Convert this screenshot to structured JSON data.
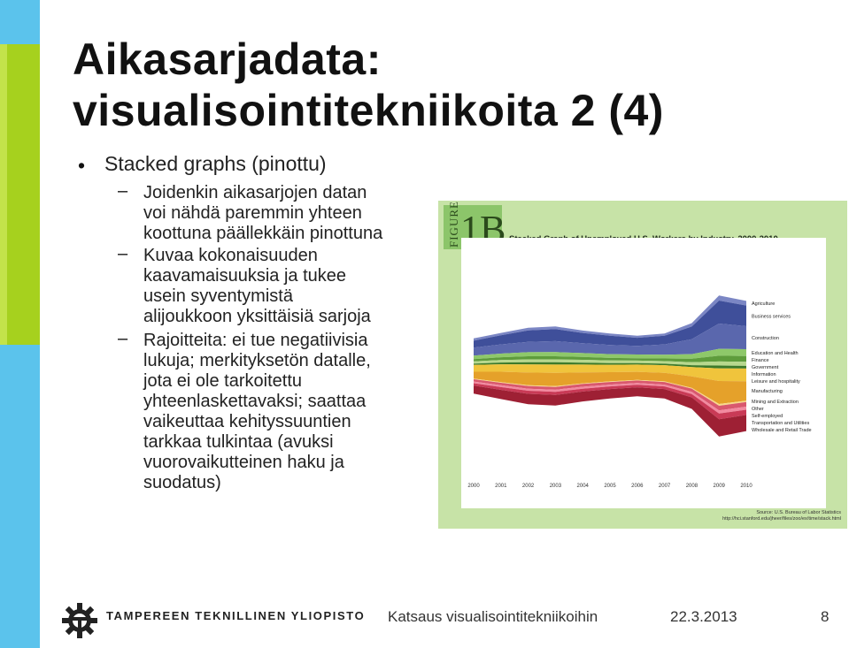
{
  "slide": {
    "title_line1": "Aikasarjadata:",
    "title_line2": "visualisointitekniikoita 2 (4)",
    "bullet": "Stacked graphs (pinottu)",
    "subbullets": [
      {
        "lines": [
          "Joidenkin aikasarjojen datan",
          "voi nähdä paremmin yhteen",
          "koottuna päällekkäin pinottuna"
        ]
      },
      {
        "lines": [
          "Kuvaa kokonaisuuden",
          "kaavamaisuuksia ja tukee",
          "usein syventymistä",
          "alijoukkoon yksittäisiä sarjoja"
        ]
      },
      {
        "lines": [
          "Rajoitteita: ei tue negatiivisia",
          "lukuja; merkityksetön datalle,",
          "jota ei ole tarkoitettu",
          "yhteenlaskettavaksi; saattaa",
          "vaikeuttaa kehityssuuntien",
          "tarkkaa tulkintaa (avuksi",
          "vuorovaikutteinen haku ja",
          "suodatus)"
        ]
      }
    ]
  },
  "figure": {
    "word": "FIGURE",
    "num": "1B",
    "title": "Stacked Graph of Unemployed U.S. Workers by Industry, 2000-2010",
    "source_line1": "Source: U.S. Bureau of Labor Statistics",
    "source_line2": "http://hci.stanford.edu/jheer/files/zoo/ex/time/stack.html"
  },
  "chart_data": {
    "type": "area",
    "title": "Stacked Graph of Unemployed U.S. Workers by Industry, 2000-2010",
    "categories": [
      "2000",
      "2001",
      "2002",
      "2003",
      "2004",
      "2005",
      "2006",
      "2007",
      "2008",
      "2009",
      "2010"
    ],
    "series": [
      {
        "name": "Agriculture",
        "color": "#7b86c4",
        "values": [
          2,
          2,
          2.2,
          2.3,
          2.1,
          2,
          1.9,
          2,
          3,
          4.5,
          4
        ]
      },
      {
        "name": "Business services",
        "color": "#3f4f9a",
        "values": [
          6,
          8,
          10,
          10.5,
          9,
          8,
          7,
          7.5,
          11,
          20,
          18
        ]
      },
      {
        "name": "Construction",
        "color": "#5a67ad",
        "values": [
          7,
          8,
          9,
          9.5,
          8.5,
          8,
          7.5,
          9,
          13,
          22,
          20
        ]
      },
      {
        "name": "Education and Health",
        "color": "#8ec86a",
        "values": [
          3,
          3.2,
          3.5,
          3.6,
          3.4,
          3.3,
          3.2,
          3.3,
          4,
          6,
          6
        ]
      },
      {
        "name": "Finance",
        "color": "#5e9c3c",
        "values": [
          2,
          2.4,
          2.8,
          2.8,
          2.5,
          2.2,
          2.1,
          2.3,
          3,
          5,
          5
        ]
      },
      {
        "name": "Government",
        "color": "#b7d88d",
        "values": [
          2,
          2.2,
          2.4,
          2.5,
          2.4,
          2.3,
          2.2,
          2.2,
          2.6,
          3.5,
          3.5
        ]
      },
      {
        "name": "Information",
        "color": "#3d7a2a",
        "values": [
          1,
          1.5,
          2,
          2,
          1.7,
          1.4,
          1.3,
          1.3,
          1.7,
          2.5,
          2.3
        ]
      },
      {
        "name": "Leisure and hospitality",
        "color": "#f0c43c",
        "values": [
          6,
          6.5,
          7,
          7.2,
          6.8,
          6.5,
          6.3,
          6.6,
          8,
          11,
          11
        ]
      },
      {
        "name": "Manufacturing",
        "color": "#e5a12a",
        "values": [
          6,
          9,
          11,
          11.5,
          9.5,
          8,
          7,
          7.5,
          10,
          20,
          17
        ]
      },
      {
        "name": "Mining and Extraction",
        "color": "#f7d98a",
        "values": [
          0.5,
          0.6,
          0.7,
          0.7,
          0.6,
          0.5,
          0.5,
          0.5,
          0.7,
          1.5,
          1.2
        ]
      },
      {
        "name": "Other",
        "color": "#d9586e",
        "values": [
          2,
          2.2,
          2.4,
          2.5,
          2.4,
          2.3,
          2.2,
          2.3,
          2.8,
          4,
          4
        ]
      },
      {
        "name": "Self-employed",
        "color": "#f28aa0",
        "values": [
          1.5,
          1.6,
          1.7,
          1.8,
          1.7,
          1.6,
          1.5,
          1.6,
          1.9,
          2.8,
          2.7
        ]
      },
      {
        "name": "Transportation and Utilities",
        "color": "#c93a56",
        "values": [
          2,
          2.4,
          2.7,
          2.7,
          2.5,
          2.3,
          2.2,
          2.3,
          2.9,
          5,
          4.5
        ]
      },
      {
        "name": "Wholesale and Retail Trade",
        "color": "#9e2034",
        "values": [
          7,
          8,
          9,
          9.2,
          8.6,
          8.2,
          7.9,
          8.2,
          10,
          15,
          14
        ]
      }
    ],
    "legend_placement": "right"
  },
  "footer": {
    "university": "TAMPEREEN TEKNILLINEN YLIOPISTO",
    "title": "Katsaus visualisointitekniikoihin",
    "date": "22.3.2013",
    "page": "8"
  }
}
